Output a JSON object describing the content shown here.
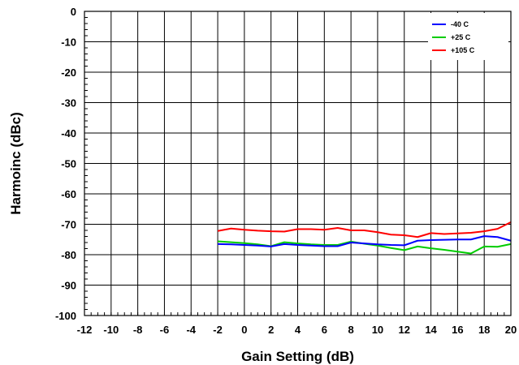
{
  "chart_data": {
    "type": "line",
    "xlabel": "Gain Setting (dB)",
    "ylabel": "Harmoinc (dBc)",
    "xlim": [
      -12,
      20
    ],
    "ylim": [
      -100,
      0
    ],
    "x_ticks": [
      "-12",
      "-10",
      "-8",
      "-6",
      "-4",
      "-2",
      "0",
      "2",
      "4",
      "6",
      "8",
      "10",
      "12",
      "14",
      "16",
      "18",
      "20"
    ],
    "y_ticks": [
      "0",
      "-10",
      "-20",
      "-30",
      "-40",
      "-50",
      "-60",
      "-70",
      "-80",
      "-90",
      "-100"
    ],
    "grid": true,
    "legend_position": "top-right",
    "x": [
      -2,
      -1,
      0,
      1,
      2,
      3,
      4,
      5,
      6,
      7,
      8,
      9,
      10,
      11,
      12,
      13,
      14,
      15,
      16,
      17,
      18,
      19,
      20
    ],
    "series": [
      {
        "name": "-40 C",
        "color": "#0000ff",
        "values": [
          -76.5,
          -76.6,
          -76.8,
          -77.0,
          -77.3,
          -76.5,
          -76.8,
          -77.0,
          -77.2,
          -77.2,
          -76.0,
          -76.3,
          -76.6,
          -76.8,
          -76.9,
          -75.4,
          -75.2,
          -75.1,
          -75.0,
          -75.0,
          -73.9,
          -74.2,
          -75.4
        ]
      },
      {
        "name": "+25 C",
        "color": "#00cc00",
        "values": [
          -75.6,
          -75.9,
          -76.2,
          -76.6,
          -77.2,
          -75.9,
          -76.3,
          -76.6,
          -76.8,
          -76.8,
          -75.7,
          -76.4,
          -77.0,
          -77.8,
          -78.5,
          -77.3,
          -77.9,
          -78.4,
          -79.0,
          -79.6,
          -77.3,
          -77.4,
          -76.5
        ]
      },
      {
        "name": "+105 C",
        "color": "#ff0000",
        "values": [
          -72.2,
          -71.4,
          -71.8,
          -72.1,
          -72.3,
          -72.4,
          -71.6,
          -71.6,
          -71.8,
          -71.2,
          -72.0,
          -72.0,
          -72.6,
          -73.4,
          -73.6,
          -74.2,
          -72.9,
          -73.2,
          -73.0,
          -72.8,
          -72.3,
          -71.5,
          -69.3
        ]
      }
    ]
  }
}
